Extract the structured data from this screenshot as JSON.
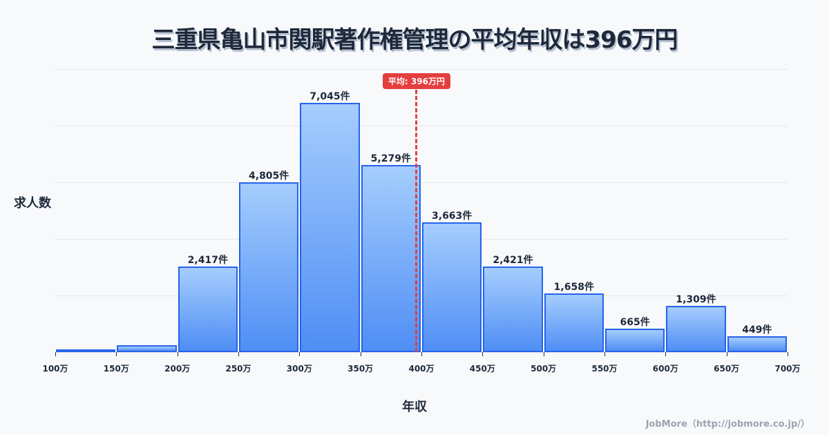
{
  "title": "三重県亀山市関駅著作権管理の平均年収は396万円",
  "footer": "JobMore（http://jobmore.co.jp/）",
  "chart_data": {
    "type": "bar",
    "title": "三重県亀山市関駅著作権管理の平均年収は396万円",
    "xlabel": "年収",
    "ylabel": "求人数",
    "x_ticks": [
      "100万",
      "150万",
      "200万",
      "250万",
      "300万",
      "350万",
      "400万",
      "450万",
      "500万",
      "550万",
      "600万",
      "650万",
      "700万"
    ],
    "categories": [
      "100-150万",
      "150-200万",
      "200-250万",
      "250-300万",
      "300-350万",
      "350-400万",
      "400-450万",
      "450-500万",
      "500-550万",
      "550-600万",
      "600-650万",
      "650-700万"
    ],
    "values": [
      20,
      200,
      2417,
      4805,
      7045,
      5279,
      3663,
      2421,
      1658,
      665,
      1309,
      449
    ],
    "labels": [
      "",
      "",
      "2,417件",
      "4,805件",
      "7,045件",
      "5,279件",
      "3,663件",
      "2,421件",
      "1,658件",
      "665件",
      "1,309件",
      "449件"
    ],
    "ylim": [
      0,
      8000
    ],
    "grid": true,
    "average": {
      "value": 396,
      "label": "平均: 396万円",
      "color": "#e53e3e"
    },
    "bar_color": "#2563eb"
  }
}
